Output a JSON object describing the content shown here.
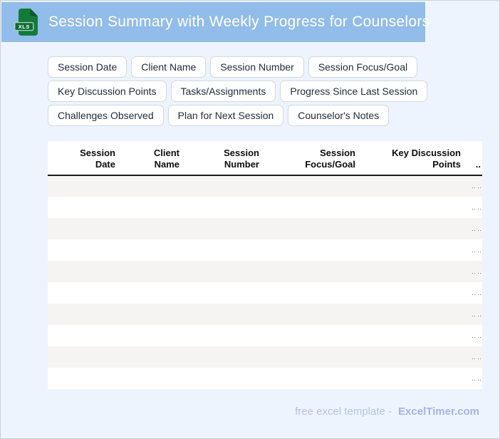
{
  "header": {
    "title": "Session Summary with Weekly Progress for Counselors",
    "file_icon_label": "XLS",
    "bar_color": "#92bce9",
    "icon_color": "#147a3c"
  },
  "chips": {
    "rows": [
      [
        "Session Date",
        "Client Name",
        "Session Number",
        "Session Focus/Goal"
      ],
      [
        "Key Discussion Points",
        "Tasks/Assignments",
        "Progress Since Last Session"
      ],
      [
        "Challenges Observed",
        "Plan for Next Session",
        "Counselor's Notes"
      ]
    ]
  },
  "table": {
    "columns": [
      "Session\nDate",
      "Client\nName",
      "Session\nNumber",
      "Session\nFocus/Goal",
      "Key Discussion\nPoints",
      ".."
    ],
    "row_count": 10,
    "overflow_marker": ".. ..",
    "row_color_odd": "#f5f4f2",
    "row_color_even": "#ffffff",
    "background": "#edf4fd"
  },
  "footer": {
    "text": "free excel template -",
    "brand": "ExcelTimer.com"
  }
}
